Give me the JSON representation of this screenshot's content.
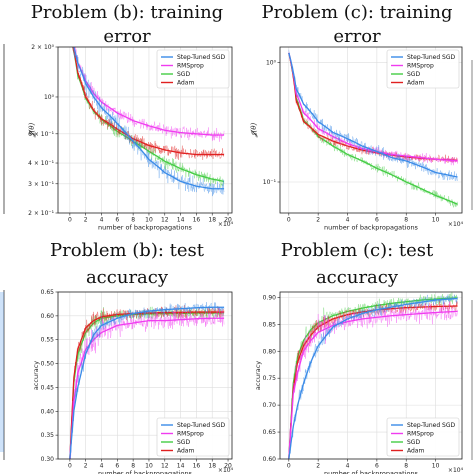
{
  "colors": {
    "Step-Tuned SGD": "#3a8be8",
    "RMSprop": "#f03cf0",
    "SGD": "#44cc44",
    "Adam": "#e02020",
    "edge_fragment": "#3a8be8"
  },
  "chart_data": [
    {
      "id": "b-train",
      "type": "line",
      "title_lines": [
        "Problem (b): training",
        "error"
      ],
      "xlabel": "number of backpropagations",
      "ylabel": "𝓙(θ)",
      "xscale_text": "×10⁴",
      "yscale": "log",
      "xlim": [
        -1.5,
        20.5
      ],
      "ylim": [
        0.2,
        2.0
      ],
      "xticks": [
        0,
        2,
        4,
        6,
        8,
        10,
        12,
        14,
        16,
        18,
        20
      ],
      "yticks": [
        {
          "value": 2.0,
          "label": "2 × 10⁰"
        },
        {
          "value": 1.0,
          "label": "10⁰"
        },
        {
          "value": 0.6,
          "label": "6 × 10⁻¹"
        },
        {
          "value": 0.4,
          "label": "4 × 10⁻¹"
        },
        {
          "value": 0.3,
          "label": "3 × 10⁻¹"
        },
        {
          "value": 0.2,
          "label": "2 × 10⁻¹"
        }
      ],
      "legend": {
        "position": "top-right",
        "entries": [
          "Step-Tuned SGD",
          "RMSprop",
          "SGD",
          "Adam"
        ]
      },
      "series": [
        {
          "name": "Step-Tuned SGD",
          "x": [
            0,
            1,
            2,
            3,
            4,
            6,
            8,
            10,
            12,
            14,
            16,
            18,
            19.5
          ],
          "values": [
            2.4,
            1.6,
            1.2,
            1.0,
            0.86,
            0.69,
            0.54,
            0.42,
            0.35,
            0.31,
            0.29,
            0.28,
            0.28
          ]
        },
        {
          "name": "RMSprop",
          "x": [
            0,
            1,
            2,
            3,
            4,
            6,
            8,
            10,
            12,
            14,
            16,
            18,
            19.5
          ],
          "values": [
            2.4,
            1.6,
            1.25,
            1.05,
            0.93,
            0.8,
            0.72,
            0.67,
            0.63,
            0.61,
            0.6,
            0.59,
            0.59
          ]
        },
        {
          "name": "SGD",
          "x": [
            0,
            1,
            2,
            3,
            4,
            6,
            8,
            10,
            12,
            14,
            16,
            18,
            19.5
          ],
          "values": [
            2.4,
            1.35,
            0.98,
            0.82,
            0.73,
            0.62,
            0.54,
            0.47,
            0.41,
            0.37,
            0.34,
            0.32,
            0.31
          ]
        },
        {
          "name": "Adam",
          "x": [
            0,
            1,
            2,
            3,
            4,
            6,
            8,
            10,
            12,
            14,
            16,
            18,
            19.5
          ],
          "values": [
            2.4,
            1.4,
            1.0,
            0.83,
            0.74,
            0.64,
            0.56,
            0.51,
            0.48,
            0.46,
            0.45,
            0.45,
            0.45
          ]
        }
      ]
    },
    {
      "id": "c-train",
      "type": "line",
      "title_lines": [
        "Problem (c): training",
        "error"
      ],
      "xlabel": "number of backpropagations",
      "ylabel": "𝓙(θ)",
      "xscale_text": "×10⁴",
      "yscale": "log",
      "xlim": [
        -0.6,
        11.8
      ],
      "ylim": [
        0.055,
        1.35
      ],
      "xticks": [
        0,
        2,
        4,
        6,
        8,
        10
      ],
      "yticks": [
        {
          "value": 1.0,
          "label": "10⁰"
        },
        {
          "value": 0.1,
          "label": "10⁻¹"
        }
      ],
      "legend": {
        "position": "top-right",
        "entries": [
          "Step-Tuned SGD",
          "RMSprop",
          "SGD",
          "Adam"
        ]
      },
      "series": [
        {
          "name": "Step-Tuned SGD",
          "x": [
            0,
            0.5,
            1,
            2,
            3,
            4,
            5,
            6,
            7,
            8,
            9,
            10,
            11.5
          ],
          "values": [
            1.2,
            0.6,
            0.45,
            0.32,
            0.26,
            0.23,
            0.2,
            0.18,
            0.16,
            0.15,
            0.135,
            0.12,
            0.11
          ]
        },
        {
          "name": "RMSprop",
          "x": [
            0,
            0.5,
            1,
            2,
            3,
            4,
            5,
            6,
            7,
            8,
            9,
            10,
            11.5
          ],
          "values": [
            1.2,
            0.55,
            0.38,
            0.28,
            0.24,
            0.21,
            0.19,
            0.18,
            0.17,
            0.165,
            0.16,
            0.155,
            0.15
          ]
        },
        {
          "name": "SGD",
          "x": [
            0,
            0.5,
            1,
            2,
            3,
            4,
            5,
            6,
            7,
            8,
            9,
            10,
            11.5
          ],
          "values": [
            1.2,
            0.5,
            0.33,
            0.24,
            0.2,
            0.17,
            0.15,
            0.13,
            0.115,
            0.1,
            0.088,
            0.077,
            0.065
          ]
        },
        {
          "name": "Adam",
          "x": [
            0,
            0.5,
            1,
            2,
            3,
            4,
            5,
            6,
            7,
            8,
            9,
            10,
            11.5
          ],
          "values": [
            1.2,
            0.48,
            0.32,
            0.25,
            0.22,
            0.2,
            0.185,
            0.175,
            0.168,
            0.162,
            0.158,
            0.155,
            0.152
          ]
        }
      ]
    },
    {
      "id": "b-test",
      "type": "line",
      "title_lines": [
        "Problem (b): test",
        "accuracy"
      ],
      "xlabel": "number of backpropagations",
      "ylabel": "accuracy",
      "xscale_text": "×10⁴",
      "yscale": "linear",
      "xlim": [
        -1.5,
        20.5
      ],
      "ylim": [
        0.3,
        0.65
      ],
      "xticks": [
        0,
        2,
        4,
        6,
        8,
        10,
        12,
        14,
        16,
        18,
        20
      ],
      "yticks": [
        {
          "value": 0.3,
          "label": "0.30"
        },
        {
          "value": 0.35,
          "label": "0.35"
        },
        {
          "value": 0.4,
          "label": "0.40"
        },
        {
          "value": 0.45,
          "label": "0.45"
        },
        {
          "value": 0.5,
          "label": "0.50"
        },
        {
          "value": 0.55,
          "label": "0.55"
        },
        {
          "value": 0.6,
          "label": "0.60"
        },
        {
          "value": 0.65,
          "label": "0.65"
        }
      ],
      "legend": {
        "position": "bottom-right",
        "entries": [
          "Step-Tuned SGD",
          "RMSprop",
          "SGD",
          "Adam"
        ]
      },
      "series": [
        {
          "name": "Step-Tuned SGD",
          "x": [
            0,
            0.5,
            1,
            2,
            3,
            4,
            6,
            8,
            10,
            12,
            14,
            16,
            18,
            19.5
          ],
          "values": [
            0.3,
            0.4,
            0.45,
            0.52,
            0.56,
            0.58,
            0.595,
            0.605,
            0.61,
            0.613,
            0.615,
            0.617,
            0.618,
            0.618
          ]
        },
        {
          "name": "RMSprop",
          "x": [
            0,
            0.5,
            1,
            2,
            3,
            4,
            6,
            8,
            10,
            12,
            14,
            16,
            18,
            19.5
          ],
          "values": [
            0.3,
            0.42,
            0.48,
            0.53,
            0.55,
            0.565,
            0.58,
            0.585,
            0.59,
            0.59,
            0.592,
            0.594,
            0.595,
            0.595
          ]
        },
        {
          "name": "SGD",
          "x": [
            0,
            0.5,
            1,
            2,
            3,
            4,
            6,
            8,
            10,
            12,
            14,
            16,
            18,
            19.5
          ],
          "values": [
            0.3,
            0.46,
            0.52,
            0.565,
            0.585,
            0.595,
            0.6,
            0.603,
            0.604,
            0.605,
            0.605,
            0.606,
            0.606,
            0.606
          ]
        },
        {
          "name": "Adam",
          "x": [
            0,
            0.5,
            1,
            2,
            3,
            4,
            6,
            8,
            10,
            12,
            14,
            16,
            18,
            19.5
          ],
          "values": [
            0.3,
            0.47,
            0.53,
            0.575,
            0.59,
            0.598,
            0.603,
            0.605,
            0.606,
            0.607,
            0.607,
            0.608,
            0.608,
            0.608
          ]
        }
      ]
    },
    {
      "id": "c-test",
      "type": "line",
      "title_lines": [
        "Problem (c): test",
        "accuracy"
      ],
      "xlabel": "number of backpropagations",
      "ylabel": "accuracy",
      "xscale_text": "×10⁴",
      "yscale": "linear",
      "xlim": [
        -0.6,
        11.8
      ],
      "ylim": [
        0.6,
        0.91
      ],
      "xticks": [
        0,
        2,
        4,
        6,
        8,
        10
      ],
      "yticks": [
        {
          "value": 0.6,
          "label": "0.60"
        },
        {
          "value": 0.65,
          "label": "0.65"
        },
        {
          "value": 0.7,
          "label": "0.70"
        },
        {
          "value": 0.75,
          "label": "0.75"
        },
        {
          "value": 0.8,
          "label": "0.80"
        },
        {
          "value": 0.85,
          "label": "0.85"
        },
        {
          "value": 0.9,
          "label": "0.90"
        }
      ],
      "legend": {
        "position": "bottom-right",
        "entries": [
          "Step-Tuned SGD",
          "RMSprop",
          "SGD",
          "Adam"
        ]
      },
      "series": [
        {
          "name": "Step-Tuned SGD",
          "x": [
            0,
            0.3,
            0.6,
            1,
            1.5,
            2,
            3,
            4,
            5,
            6,
            7,
            8,
            9,
            10,
            11.5
          ],
          "values": [
            0.6,
            0.66,
            0.7,
            0.74,
            0.78,
            0.81,
            0.845,
            0.86,
            0.87,
            0.877,
            0.882,
            0.887,
            0.891,
            0.895,
            0.898
          ]
        },
        {
          "name": "RMSprop",
          "x": [
            0,
            0.3,
            0.6,
            1,
            1.5,
            2,
            3,
            4,
            5,
            6,
            7,
            8,
            9,
            10,
            11.5
          ],
          "values": [
            0.6,
            0.72,
            0.76,
            0.8,
            0.82,
            0.835,
            0.848,
            0.855,
            0.86,
            0.863,
            0.866,
            0.868,
            0.87,
            0.872,
            0.874
          ]
        },
        {
          "name": "SGD",
          "x": [
            0,
            0.3,
            0.6,
            1,
            1.5,
            2,
            3,
            4,
            5,
            6,
            7,
            8,
            9,
            10,
            11.5
          ],
          "values": [
            0.6,
            0.74,
            0.79,
            0.82,
            0.84,
            0.853,
            0.866,
            0.874,
            0.88,
            0.885,
            0.889,
            0.892,
            0.895,
            0.897,
            0.899
          ]
        },
        {
          "name": "Adam",
          "x": [
            0,
            0.3,
            0.6,
            1,
            1.5,
            2,
            3,
            4,
            5,
            6,
            7,
            8,
            9,
            10,
            11.5
          ],
          "values": [
            0.6,
            0.73,
            0.78,
            0.81,
            0.83,
            0.845,
            0.86,
            0.868,
            0.873,
            0.877,
            0.879,
            0.881,
            0.882,
            0.883,
            0.884
          ]
        }
      ]
    }
  ]
}
